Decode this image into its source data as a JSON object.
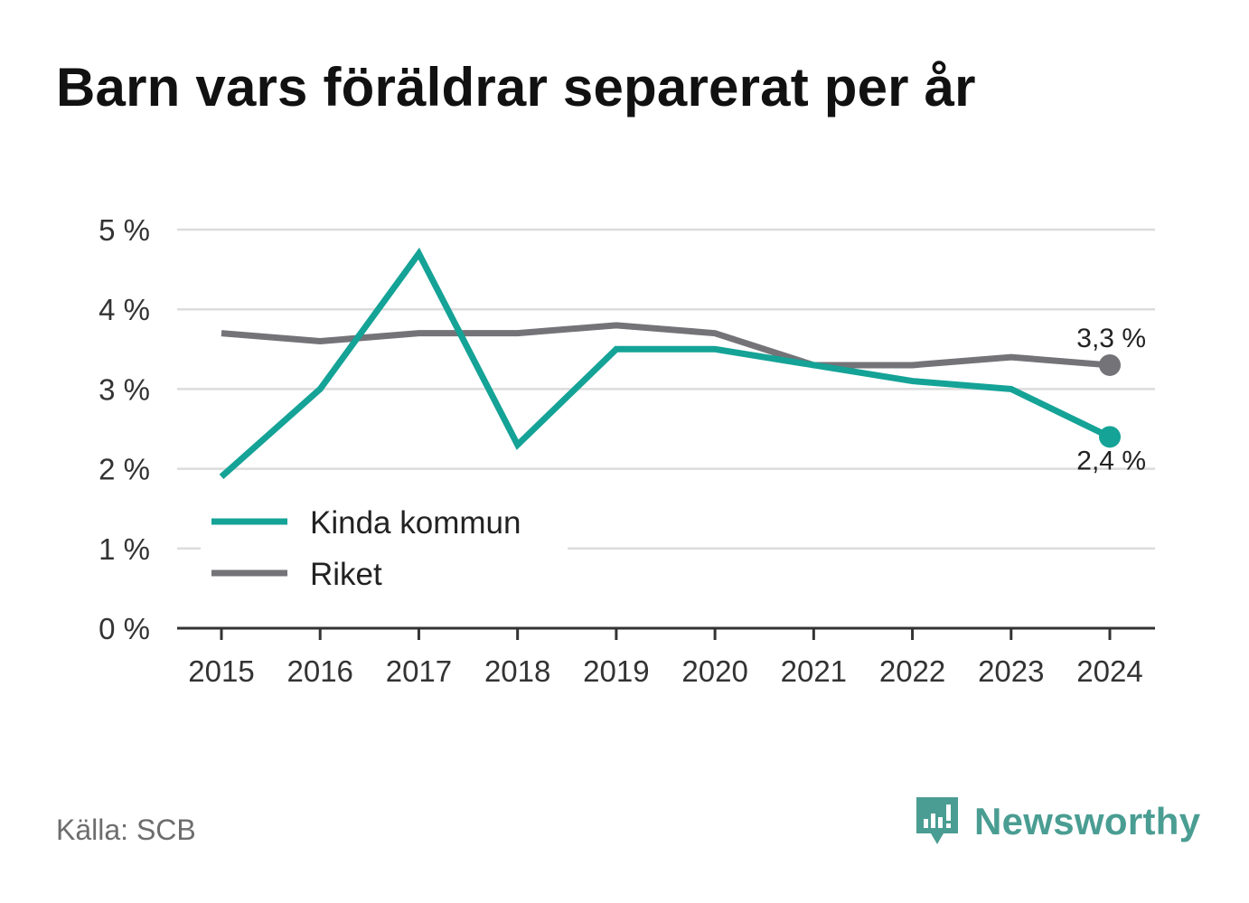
{
  "title": "Barn vars föräldrar separerat per år",
  "source": "Källa: SCB",
  "brand": {
    "name": "Newsworthy",
    "icon": "newsworthy-logo-icon",
    "color": "#4a9d92"
  },
  "chart_data": {
    "type": "line",
    "title": "Barn vars föräldrar separerat per år",
    "xlabel": "",
    "ylabel": "",
    "x": [
      "2015",
      "2016",
      "2017",
      "2018",
      "2019",
      "2020",
      "2021",
      "2022",
      "2023",
      "2024"
    ],
    "y_ticks": [
      "0 %",
      "1 %",
      "2 %",
      "3 %",
      "4 %",
      "5 %"
    ],
    "ylim": [
      0,
      5
    ],
    "grid": true,
    "legend_position": "lower-left",
    "series": [
      {
        "name": "Kinda kommun",
        "color": "#14a396",
        "values": [
          1.9,
          3.0,
          4.7,
          2.3,
          3.5,
          3.5,
          3.3,
          3.1,
          3.0,
          2.4
        ],
        "end_label": "2,4 %"
      },
      {
        "name": "Riket",
        "color": "#737378",
        "values": [
          3.7,
          3.6,
          3.7,
          3.7,
          3.8,
          3.7,
          3.3,
          3.3,
          3.4,
          3.3
        ],
        "end_label": "3,3 %"
      }
    ]
  }
}
